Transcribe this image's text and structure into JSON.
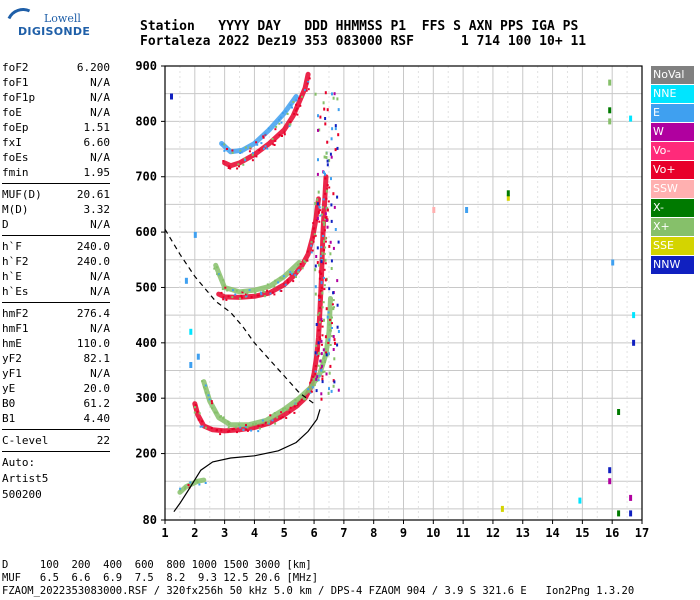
{
  "logo": {
    "line1": "Lowell",
    "line2": "DIGISONDE"
  },
  "header": {
    "line1": "Station   YYYY DAY   DDD HHMMSS P1  FFS S AXN PPS IGA PS",
    "line2": "Fortaleza 2022 Dez19 353 083000 RSF      1 714 100 10+ 11"
  },
  "params": {
    "group1": [
      {
        "name": "foF2",
        "value": "6.200"
      },
      {
        "name": "foF1",
        "value": "N/A"
      },
      {
        "name": "foF1p",
        "value": "N/A"
      },
      {
        "name": "foE",
        "value": "N/A"
      },
      {
        "name": "foEp",
        "value": "1.51"
      },
      {
        "name": "fxI",
        "value": "6.60"
      },
      {
        "name": "foEs",
        "value": "N/A"
      },
      {
        "name": "fmin",
        "value": "1.95"
      }
    ],
    "group2": [
      {
        "name": "MUF(D)",
        "value": "20.61"
      },
      {
        "name": "M(D)",
        "value": "3.32"
      },
      {
        "name": "D",
        "value": "N/A"
      }
    ],
    "group3": [
      {
        "name": "h`F",
        "value": "240.0"
      },
      {
        "name": "h`F2",
        "value": "240.0"
      },
      {
        "name": "h`E",
        "value": "N/A"
      },
      {
        "name": "h`Es",
        "value": "N/A"
      }
    ],
    "group4": [
      {
        "name": "hmF2",
        "value": "276.4"
      },
      {
        "name": "hmF1",
        "value": "N/A"
      },
      {
        "name": "hmE",
        "value": "110.0"
      },
      {
        "name": "yF2",
        "value": "82.1"
      },
      {
        "name": "yF1",
        "value": "N/A"
      },
      {
        "name": "yE",
        "value": "20.0"
      },
      {
        "name": "B0",
        "value": "61.2"
      },
      {
        "name": "B1",
        "value": "4.40"
      }
    ],
    "clevel": {
      "name": "C-level",
      "value": "22"
    },
    "auto": [
      "Auto:",
      "Artist5",
      "500200"
    ]
  },
  "legend": [
    {
      "label": "NoVal",
      "color": "#808080"
    },
    {
      "label": "NNE",
      "color": "#00e5ff"
    },
    {
      "label": "E",
      "color": "#3fa0f0"
    },
    {
      "label": "W",
      "color": "#b0009f"
    },
    {
      "label": "Vo-",
      "color": "#ff2a7a"
    },
    {
      "label": "Vo+",
      "color": "#e8002a"
    },
    {
      "label": "SSW",
      "color": "#ffb0b0"
    },
    {
      "label": "X-",
      "color": "#007a00"
    },
    {
      "label": "X+",
      "color": "#86c06a"
    },
    {
      "label": "SSE",
      "color": "#d4d400"
    },
    {
      "label": "NNW",
      "color": "#1020c0"
    }
  ],
  "chart_data": {
    "type": "scatter",
    "xlim": [
      1,
      17
    ],
    "ylim": [
      80,
      900
    ],
    "x_ticks": [
      "1",
      "2",
      "3",
      "4",
      "5",
      "6",
      "7",
      "8",
      "9",
      "10",
      "11",
      "12",
      "13",
      "14",
      "15",
      "16",
      "17"
    ],
    "y_ticks": [
      "80",
      "200",
      "300",
      "400",
      "500",
      "600",
      "700",
      "800",
      "900"
    ],
    "y_tick_values": [
      80,
      200,
      300,
      400,
      500,
      600,
      700,
      800,
      900
    ],
    "grid": true,
    "legend_position": "right",
    "traces": [
      {
        "name": "F2 O-trace 1st hop",
        "color": "#e8002a",
        "points": [
          [
            2.0,
            290
          ],
          [
            2.1,
            270
          ],
          [
            2.3,
            250
          ],
          [
            2.6,
            243
          ],
          [
            3.0,
            241
          ],
          [
            3.5,
            243
          ],
          [
            4.0,
            247
          ],
          [
            4.5,
            255
          ],
          [
            5.0,
            270
          ],
          [
            5.4,
            285
          ],
          [
            5.7,
            300
          ],
          [
            5.9,
            320
          ],
          [
            6.0,
            345
          ],
          [
            6.1,
            380
          ],
          [
            6.15,
            410
          ],
          [
            6.2,
            460
          ],
          [
            6.25,
            520
          ],
          [
            6.3,
            600
          ],
          [
            6.4,
            700
          ]
        ]
      },
      {
        "name": "F2 X-trace 1st hop",
        "color": "#86c06a",
        "points": [
          [
            2.3,
            330
          ],
          [
            2.5,
            295
          ],
          [
            2.8,
            265
          ],
          [
            3.2,
            252
          ],
          [
            3.8,
            252
          ],
          [
            4.4,
            260
          ],
          [
            5.0,
            280
          ],
          [
            5.5,
            300
          ],
          [
            5.9,
            320
          ],
          [
            6.2,
            345
          ],
          [
            6.4,
            380
          ],
          [
            6.5,
            420
          ],
          [
            6.55,
            480
          ]
        ]
      },
      {
        "name": "F2 O-trace 2nd hop",
        "color": "#e8002a",
        "points": [
          [
            2.8,
            488
          ],
          [
            3.0,
            483
          ],
          [
            3.5,
            482
          ],
          [
            4.0,
            484
          ],
          [
            4.5,
            490
          ],
          [
            5.0,
            505
          ],
          [
            5.3,
            520
          ],
          [
            5.6,
            540
          ],
          [
            5.8,
            560
          ],
          [
            5.95,
            590
          ],
          [
            6.05,
            620
          ],
          [
            6.15,
            660
          ]
        ]
      },
      {
        "name": "F2 X-trace 2nd hop",
        "color": "#86c06a",
        "points": [
          [
            2.7,
            540
          ],
          [
            3.0,
            500
          ],
          [
            3.5,
            492
          ],
          [
            4.0,
            495
          ],
          [
            4.5,
            502
          ],
          [
            5.0,
            520
          ],
          [
            5.5,
            545
          ]
        ]
      },
      {
        "name": "F2 O-trace 3rd hop",
        "color": "#e8002a",
        "points": [
          [
            3.0,
            725
          ],
          [
            3.2,
            720
          ],
          [
            3.5,
            725
          ],
          [
            4.0,
            740
          ],
          [
            4.5,
            760
          ],
          [
            5.0,
            785
          ],
          [
            5.3,
            810
          ],
          [
            5.5,
            835
          ],
          [
            5.7,
            860
          ],
          [
            5.8,
            885
          ]
        ]
      },
      {
        "name": "F2 X-trace 3rd hop",
        "color": "#3fa0f0",
        "points": [
          [
            2.9,
            760
          ],
          [
            3.2,
            745
          ],
          [
            3.6,
            748
          ],
          [
            4.0,
            760
          ],
          [
            4.5,
            785
          ],
          [
            5.0,
            815
          ],
          [
            5.4,
            845
          ]
        ]
      },
      {
        "name": "E trace",
        "color": "#86c06a",
        "points": [
          [
            1.5,
            130
          ],
          [
            1.7,
            140
          ],
          [
            1.9,
            145
          ],
          [
            2.1,
            150
          ],
          [
            2.3,
            152
          ]
        ]
      },
      {
        "name": "Profile",
        "color": "#000000",
        "points": [
          [
            1.3,
            95
          ],
          [
            1.5,
            110
          ],
          [
            1.8,
            135
          ],
          [
            2.2,
            170
          ],
          [
            2.6,
            185
          ],
          [
            3.2,
            192
          ],
          [
            4.0,
            196
          ],
          [
            4.8,
            205
          ],
          [
            5.4,
            220
          ],
          [
            5.8,
            240
          ],
          [
            6.1,
            262
          ],
          [
            6.2,
            280
          ]
        ]
      },
      {
        "name": "MUF curve",
        "color": "#000000",
        "dashed": true,
        "points": [
          [
            1.0,
            605
          ],
          [
            1.5,
            560
          ],
          [
            2.0,
            520
          ],
          [
            2.7,
            475
          ],
          [
            3.2,
            455
          ],
          [
            3.6,
            430
          ],
          [
            4.0,
            400
          ],
          [
            4.5,
            370
          ],
          [
            5.0,
            340
          ],
          [
            5.5,
            310
          ],
          [
            6.0,
            290
          ]
        ]
      }
    ],
    "outliers": [
      {
        "x": 1.2,
        "y": 845,
        "color": "#1020c0"
      },
      {
        "x": 2.0,
        "y": 595,
        "color": "#3fa0f0"
      },
      {
        "x": 1.7,
        "y": 512,
        "color": "#3fa0f0"
      },
      {
        "x": 1.85,
        "y": 420,
        "color": "#00e5ff"
      },
      {
        "x": 1.85,
        "y": 360,
        "color": "#3fa0f0"
      },
      {
        "x": 2.1,
        "y": 375,
        "color": "#3fa0f0"
      },
      {
        "x": 10.0,
        "y": 640,
        "color": "#ffb0b0"
      },
      {
        "x": 11.1,
        "y": 640,
        "color": "#3fa0f0"
      },
      {
        "x": 12.5,
        "y": 662,
        "color": "#d4d400"
      },
      {
        "x": 12.5,
        "y": 670,
        "color": "#007a00"
      },
      {
        "x": 12.3,
        "y": 100,
        "color": "#d4d400"
      },
      {
        "x": 14.9,
        "y": 115,
        "color": "#00e5ff"
      },
      {
        "x": 15.9,
        "y": 870,
        "color": "#86c06a"
      },
      {
        "x": 15.9,
        "y": 820,
        "color": "#007a00"
      },
      {
        "x": 15.9,
        "y": 800,
        "color": "#86c06a"
      },
      {
        "x": 16.6,
        "y": 805,
        "color": "#00e5ff"
      },
      {
        "x": 16.0,
        "y": 545,
        "color": "#3fa0f0"
      },
      {
        "x": 16.7,
        "y": 450,
        "color": "#00e5ff"
      },
      {
        "x": 16.7,
        "y": 400,
        "color": "#1020c0"
      },
      {
        "x": 16.2,
        "y": 275,
        "color": "#007a00"
      },
      {
        "x": 15.9,
        "y": 170,
        "color": "#1020c0"
      },
      {
        "x": 15.9,
        "y": 150,
        "color": "#b0009f"
      },
      {
        "x": 16.6,
        "y": 120,
        "color": "#b0009f"
      },
      {
        "x": 16.2,
        "y": 92,
        "color": "#007a00"
      },
      {
        "x": 16.6,
        "y": 92,
        "color": "#1020c0"
      }
    ]
  },
  "footer": {
    "line1": "D     100  200  400  600  800 1000 1500 3000 [km]",
    "line2": "MUF   6.5  6.6  6.9  7.5  8.2  9.3 12.5 20.6 [MHz]",
    "line3": "FZAOM_2022353083000.RSF / 320fx256h 50 kHz 5.0 km / DPS-4 FZAOM 904 / 3.9 S 321.6 E   Ion2Png 1.3.20"
  }
}
